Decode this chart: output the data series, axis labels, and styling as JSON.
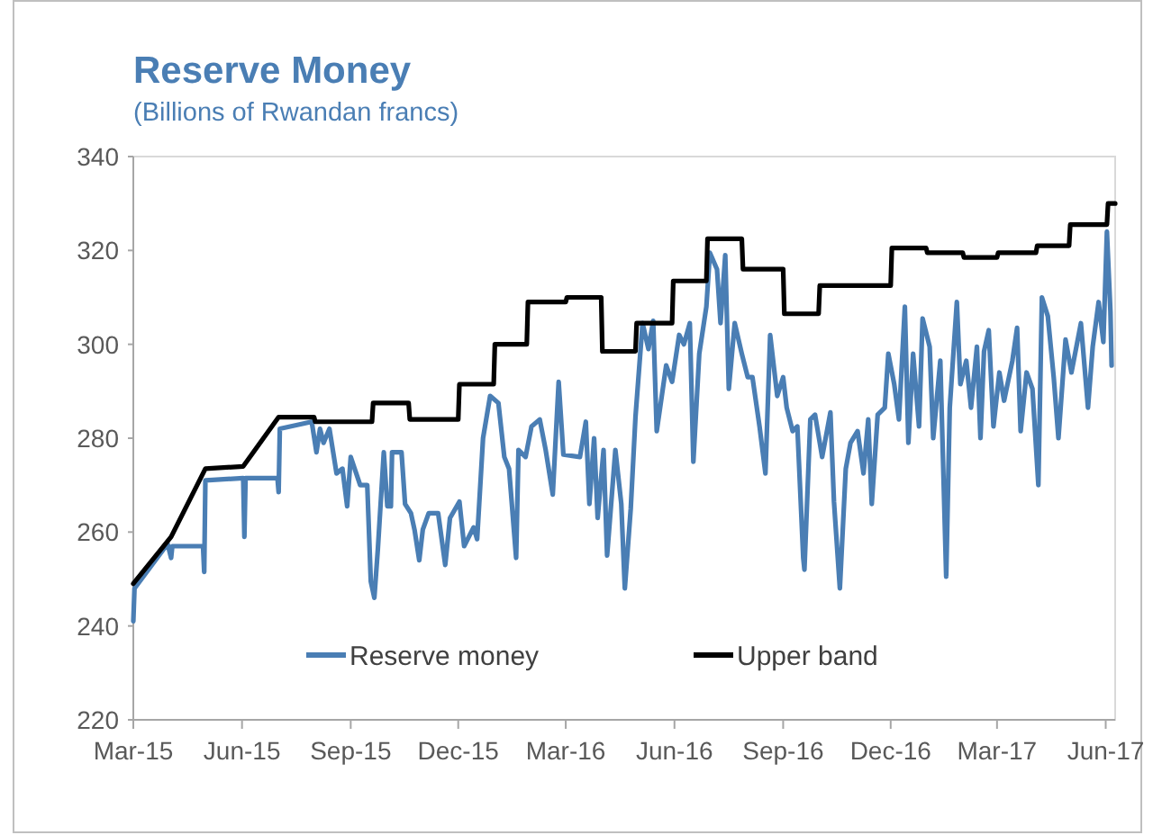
{
  "chart_data": {
    "type": "line",
    "title": "Reserve Money",
    "subtitle": "(Billions of Rwandan francs)",
    "xlim": [
      "2015-03-01",
      "2017-06-09"
    ],
    "xticks": [
      {
        "value": "2015-03-01",
        "label": "Mar-15"
      },
      {
        "value": "2015-06-01",
        "label": "Jun-15"
      },
      {
        "value": "2015-09-01",
        "label": "Sep-15"
      },
      {
        "value": "2015-12-01",
        "label": "Dec-15"
      },
      {
        "value": "2016-03-01",
        "label": "Mar-16"
      },
      {
        "value": "2016-06-01",
        "label": "Jun-16"
      },
      {
        "value": "2016-09-01",
        "label": "Sep-16"
      },
      {
        "value": "2016-12-01",
        "label": "Dec-16"
      },
      {
        "value": "2017-03-01",
        "label": "Mar-17"
      },
      {
        "value": "2017-06-01",
        "label": "Jun-17"
      }
    ],
    "ylim": [
      220,
      340
    ],
    "yticks": [
      220,
      240,
      260,
      280,
      300,
      320,
      340
    ],
    "grid": false,
    "legend": "bottom",
    "marker": "none",
    "line_style": "solid",
    "series": [
      {
        "name": "Reserve money",
        "color": "#4a7eb4",
        "x": [
          "2015-03-01",
          "2015-03-02",
          "2015-03-30",
          "2015-04-02",
          "2015-04-03",
          "2015-04-29",
          "2015-04-30",
          "2015-05-01",
          "2015-06-02",
          "2015-06-03",
          "2015-06-04",
          "2015-07-01",
          "2015-07-02",
          "2015-07-03",
          "2015-07-30",
          "2015-08-03",
          "2015-08-06",
          "2015-08-09",
          "2015-08-14",
          "2015-08-20",
          "2015-08-25",
          "2015-08-29",
          "2015-09-01",
          "2015-09-09",
          "2015-09-15",
          "2015-09-18",
          "2015-09-21",
          "2015-09-24",
          "2015-09-29",
          "2015-10-02",
          "2015-10-05",
          "2015-10-06",
          "2015-10-14",
          "2015-10-17",
          "2015-10-22",
          "2015-10-25",
          "2015-10-29",
          "2015-11-01",
          "2015-11-06",
          "2015-11-14",
          "2015-11-20",
          "2015-11-24",
          "2015-12-02",
          "2015-12-06",
          "2015-12-14",
          "2015-12-17",
          "2015-12-22",
          "2015-12-28",
          "2016-01-04",
          "2016-01-09",
          "2016-01-13",
          "2016-01-19",
          "2016-01-21",
          "2016-01-27",
          "2016-02-01",
          "2016-02-08",
          "2016-02-13",
          "2016-02-19",
          "2016-02-24",
          "2016-02-28",
          "2016-03-13",
          "2016-03-18",
          "2016-03-21",
          "2016-03-25",
          "2016-03-28",
          "2016-04-02",
          "2016-04-05",
          "2016-04-12",
          "2016-04-17",
          "2016-04-20",
          "2016-04-25",
          "2016-04-29",
          "2016-05-05",
          "2016-05-10",
          "2016-05-14",
          "2016-05-17",
          "2016-05-25",
          "2016-05-30",
          "2016-06-05",
          "2016-06-09",
          "2016-06-14",
          "2016-06-17",
          "2016-06-22",
          "2016-06-28",
          "2016-07-01",
          "2016-07-07",
          "2016-07-10",
          "2016-07-14",
          "2016-07-17",
          "2016-07-22",
          "2016-07-28",
          "2016-08-02",
          "2016-08-06",
          "2016-08-12",
          "2016-08-17",
          "2016-08-21",
          "2016-08-27",
          "2016-09-01",
          "2016-09-04",
          "2016-09-09",
          "2016-09-13",
          "2016-09-18",
          "2016-09-19",
          "2016-09-24",
          "2016-09-28",
          "2016-10-04",
          "2016-10-11",
          "2016-10-14",
          "2016-10-19",
          "2016-10-24",
          "2016-10-28",
          "2016-11-03",
          "2016-11-08",
          "2016-11-12",
          "2016-11-15",
          "2016-11-20",
          "2016-11-26",
          "2016-11-29",
          "2016-12-04",
          "2016-12-08",
          "2016-12-13",
          "2016-12-16",
          "2016-12-20",
          "2016-12-25",
          "2016-12-28",
          "2017-01-03",
          "2017-01-06",
          "2017-01-12",
          "2017-01-17",
          "2017-01-20",
          "2017-01-26",
          "2017-01-29",
          "2017-02-03",
          "2017-02-07",
          "2017-02-12",
          "2017-02-15",
          "2017-02-18",
          "2017-02-22",
          "2017-02-26",
          "2017-03-03",
          "2017-03-07",
          "2017-03-14",
          "2017-03-18",
          "2017-03-21",
          "2017-03-26",
          "2017-03-31",
          "2017-04-05",
          "2017-04-08",
          "2017-04-13",
          "2017-04-18",
          "2017-04-22",
          "2017-04-28",
          "2017-05-03",
          "2017-05-11",
          "2017-05-17",
          "2017-05-21",
          "2017-05-26",
          "2017-05-30",
          "2017-06-02",
          "2017-06-05",
          "2017-06-06"
        ],
        "values": [
          241,
          248,
          257.5,
          254.5,
          257,
          257,
          251.5,
          271,
          271.5,
          259,
          271.5,
          271.5,
          268.5,
          282,
          283.5,
          277,
          282,
          279,
          282,
          272.5,
          273.5,
          265.5,
          276,
          270,
          270,
          249.5,
          246,
          256.5,
          277,
          265.5,
          265.5,
          277,
          277,
          266,
          264,
          260.5,
          254,
          260.5,
          264,
          264,
          253,
          263,
          266.5,
          257,
          261,
          258.5,
          280,
          289,
          287.5,
          276,
          273.5,
          254.5,
          277.5,
          276,
          282.5,
          284,
          277.5,
          268,
          292,
          276.5,
          276,
          283.5,
          266,
          280,
          263,
          277.5,
          255,
          277.5,
          266,
          248,
          265,
          284.5,
          304.5,
          299,
          305,
          281.5,
          295.5,
          292,
          302,
          300,
          304.5,
          275,
          298,
          308,
          319.5,
          316,
          304.5,
          319,
          290.5,
          304.5,
          298,
          293,
          293,
          282.5,
          272.5,
          302,
          289,
          293,
          286.5,
          281.5,
          282.5,
          254.5,
          252,
          284,
          285,
          276,
          285.5,
          266.5,
          248,
          273.5,
          279,
          281.5,
          272.5,
          284,
          266,
          285,
          286.5,
          298,
          291.5,
          284,
          308,
          279,
          298,
          282.5,
          305.5,
          299.5,
          280,
          296.5,
          250.5,
          286.5,
          309,
          291.5,
          296.5,
          286.5,
          299.5,
          280,
          298.5,
          303,
          282.5,
          294,
          288,
          296.5,
          303.5,
          281.5,
          294,
          290.5,
          270,
          310,
          306,
          293,
          280,
          301,
          294,
          304.5,
          286.5,
          299.5,
          309,
          300.5,
          324,
          307,
          295.5
        ]
      },
      {
        "name": "Upper band",
        "color": "#000000",
        "x": [
          "2015-03-01",
          "2015-04-02",
          "2015-05-01",
          "2015-06-02",
          "2015-07-02",
          "2015-08-01",
          "2015-08-02",
          "2015-09-19",
          "2015-09-20",
          "2015-10-20",
          "2015-10-21",
          "2015-12-01",
          "2015-12-02",
          "2015-12-31",
          "2016-01-01",
          "2016-01-28",
          "2016-01-29",
          "2016-03-01",
          "2016-03-02",
          "2016-03-31",
          "2016-04-01",
          "2016-04-29",
          "2016-04-30",
          "2016-05-30",
          "2016-05-31",
          "2016-06-28",
          "2016-06-29",
          "2016-07-28",
          "2016-07-29",
          "2016-09-01",
          "2016-09-02",
          "2016-10-01",
          "2016-10-02",
          "2016-12-01",
          "2016-12-02",
          "2016-12-31",
          "2017-01-01",
          "2017-01-31",
          "2017-02-01",
          "2017-03-01",
          "2017-03-02",
          "2017-04-03",
          "2017-04-04",
          "2017-05-01",
          "2017-05-02",
          "2017-06-02",
          "2017-06-03",
          "2017-06-09"
        ],
        "values": [
          249,
          259,
          273.5,
          274,
          284.5,
          284.5,
          283.5,
          283.5,
          287.5,
          287.5,
          284,
          284,
          291.5,
          291.5,
          300,
          300,
          309,
          309,
          310,
          310,
          298.5,
          298.5,
          304.5,
          304.5,
          313.5,
          313.5,
          322.5,
          322.5,
          316,
          316,
          306.5,
          306.5,
          312.5,
          312.5,
          320.5,
          320.5,
          319.5,
          319.5,
          318.5,
          318.5,
          319.5,
          319.5,
          321,
          321,
          325.5,
          325.5,
          330,
          330
        ]
      }
    ]
  }
}
